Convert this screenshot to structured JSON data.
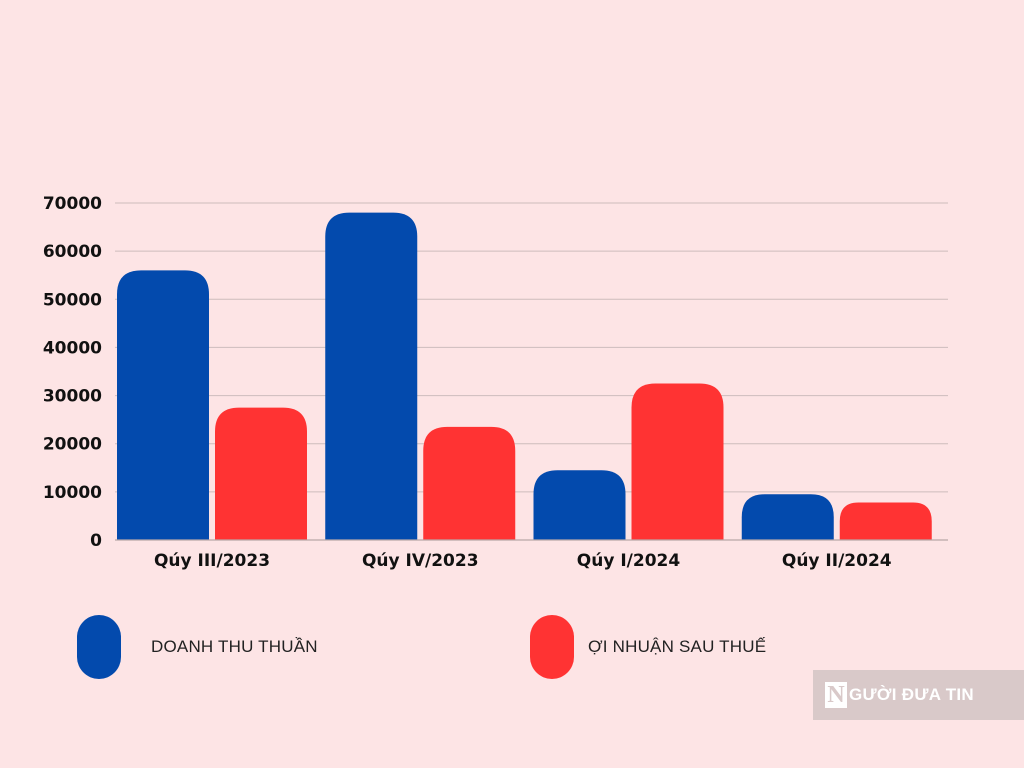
{
  "chart_data": {
    "type": "bar",
    "categories": [
      "Qúy III/2023",
      "Qúy IV/2023",
      "Qúy I/2024",
      "Qúy II/2024"
    ],
    "series": [
      {
        "name": "DOANH THU THUẦN",
        "color": "#034aad",
        "values": [
          56000,
          68000,
          14500,
          9500
        ]
      },
      {
        "name": "ỢI NHUẬN SAU THUẾ",
        "color": "#ff3333",
        "values": [
          27500,
          23500,
          32500,
          7800
        ]
      }
    ],
    "yticks": [
      0,
      10000,
      20000,
      30000,
      40000,
      50000,
      60000,
      70000
    ],
    "ylim": [
      0,
      70000
    ],
    "grid": true,
    "legend_position": "bottom"
  },
  "watermark": {
    "mark": "N",
    "text": "GƯỜI ĐƯA TIN"
  }
}
